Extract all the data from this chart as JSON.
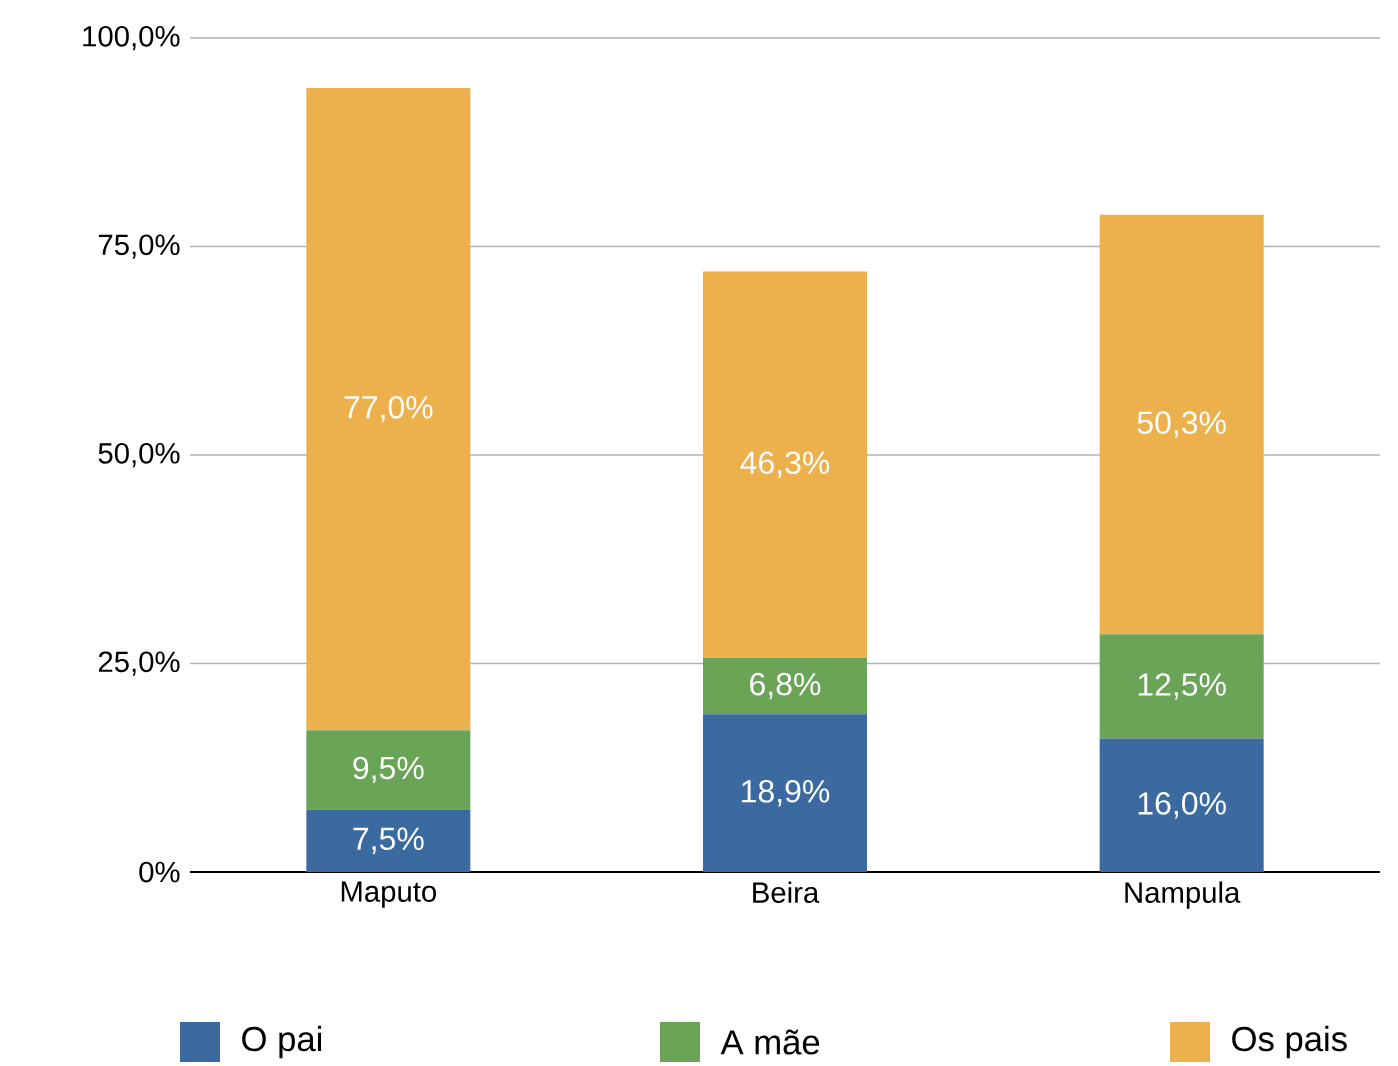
{
  "chart_data": {
    "type": "bar",
    "stacked": true,
    "categories": [
      "Maputo",
      "Beira",
      "Nampula"
    ],
    "series": [
      {
        "name": "O pai",
        "color": "#3a6aa0",
        "values": [
          7.5,
          18.9,
          16.0
        ],
        "value_labels": [
          "7,5%",
          "18,9%",
          "16,0%"
        ]
      },
      {
        "name": "A mãe",
        "color": "#6aa457",
        "values": [
          9.5,
          6.8,
          12.5
        ],
        "value_labels": [
          "9,5%",
          "6,8%",
          "12,5%"
        ]
      },
      {
        "name": "Os pais",
        "color": "#ecb04c",
        "values": [
          77.0,
          46.3,
          50.3
        ],
        "value_labels": [
          "77,0%",
          "46,3%",
          "50,3%"
        ]
      }
    ],
    "ylim": [
      0,
      100
    ],
    "yticks": [
      {
        "value": 0,
        "label": "0%"
      },
      {
        "value": 25,
        "label": "25,0%"
      },
      {
        "value": 50,
        "label": "50,0%"
      },
      {
        "value": 75,
        "label": "75,0%"
      },
      {
        "value": 100,
        "label": "100,0%"
      }
    ],
    "grid": "y",
    "legend": "bottom"
  }
}
